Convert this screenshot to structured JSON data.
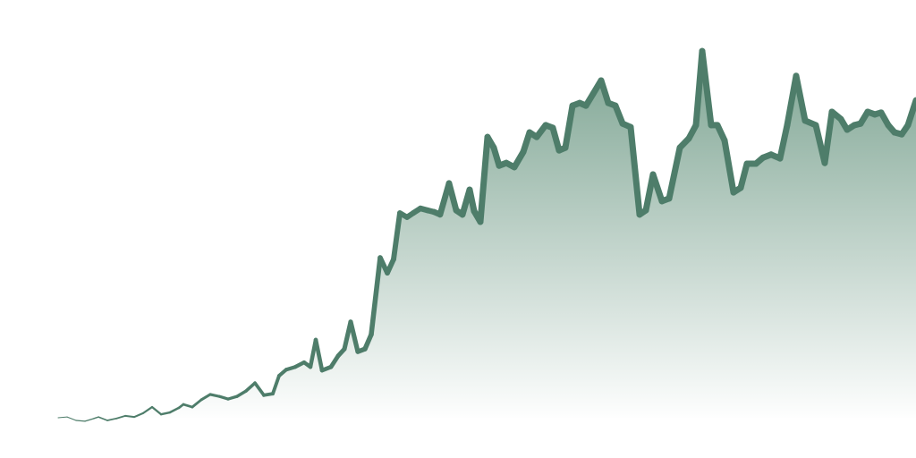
{
  "chart_data": {
    "type": "area",
    "color": "#4e7d6a",
    "fill_color": "#6f9a86",
    "xlim": [
      0,
      959
    ],
    "ylim": [
      0,
      100
    ],
    "x": [
      0,
      10,
      20,
      30,
      40,
      45,
      55,
      65,
      75,
      85,
      95,
      105,
      115,
      125,
      135,
      140,
      150,
      160,
      170,
      180,
      190,
      200,
      210,
      220,
      230,
      240,
      247,
      255,
      265,
      275,
      282,
      288,
      295,
      305,
      313,
      320,
      327,
      335,
      343,
      350,
      360,
      368,
      375,
      382,
      390,
      397,
      405,
      413,
      420,
      427,
      437,
      445,
      452,
      460,
      465,
      472,
      480,
      487,
      493,
      501,
      510,
      520,
      527,
      535,
      545,
      553,
      560,
      567,
      575,
      583,
      590,
      598,
      607,
      615,
      623,
      631,
      640,
      650,
      657,
      665,
      675,
      683,
      695,
      705,
      713,
      720,
      730,
      737,
      745,
      755,
      763,
      770,
      780,
      788,
      797,
      807,
      815,
      825,
      835,
      847,
      857,
      865,
      875,
      882,
      890,
      897,
      905,
      913,
      920,
      928,
      935,
      943,
      950,
      959
    ],
    "values": [
      0,
      0.2,
      -0.7,
      -0.9,
      -0.2,
      0.2,
      -0.7,
      -0.2,
      0.5,
      0.2,
      1.2,
      2.8,
      0.9,
      1.4,
      2.6,
      3.5,
      2.8,
      4.7,
      6.1,
      5.6,
      4.9,
      5.6,
      7.0,
      9.1,
      5.9,
      6.3,
      11.0,
      12.6,
      13.3,
      14.5,
      13.3,
      20.4,
      12.4,
      13.3,
      16.2,
      18.0,
      25.1,
      17.3,
      18.0,
      21.8,
      41.9,
      37.9,
      41.5,
      53.6,
      52.5,
      53.6,
      54.8,
      54.3,
      53.9,
      53.2,
      61.4,
      54.3,
      53.2,
      59.7,
      54.1,
      51.3,
      73.5,
      70.7,
      66.0,
      66.7,
      65.6,
      69.6,
      74.7,
      73.5,
      76.6,
      75.9,
      70.0,
      70.7,
      81.7,
      82.4,
      81.7,
      84.8,
      88.3,
      82.4,
      81.7,
      77.0,
      76.1,
      53.2,
      54.3,
      63.7,
      56.7,
      57.4,
      70.7,
      73.1,
      76.6,
      96.0,
      76.6,
      76.6,
      72.6,
      59.0,
      60.2,
      66.5,
      66.5,
      68.1,
      68.9,
      67.9,
      76.6,
      89.5,
      77.8,
      76.6,
      66.7,
      80.1,
      78.2,
      75.4,
      76.6,
      77.0,
      80.1,
      79.4,
      79.9,
      76.6,
      74.7,
      74.2,
      76.6,
      83.1
    ]
  }
}
